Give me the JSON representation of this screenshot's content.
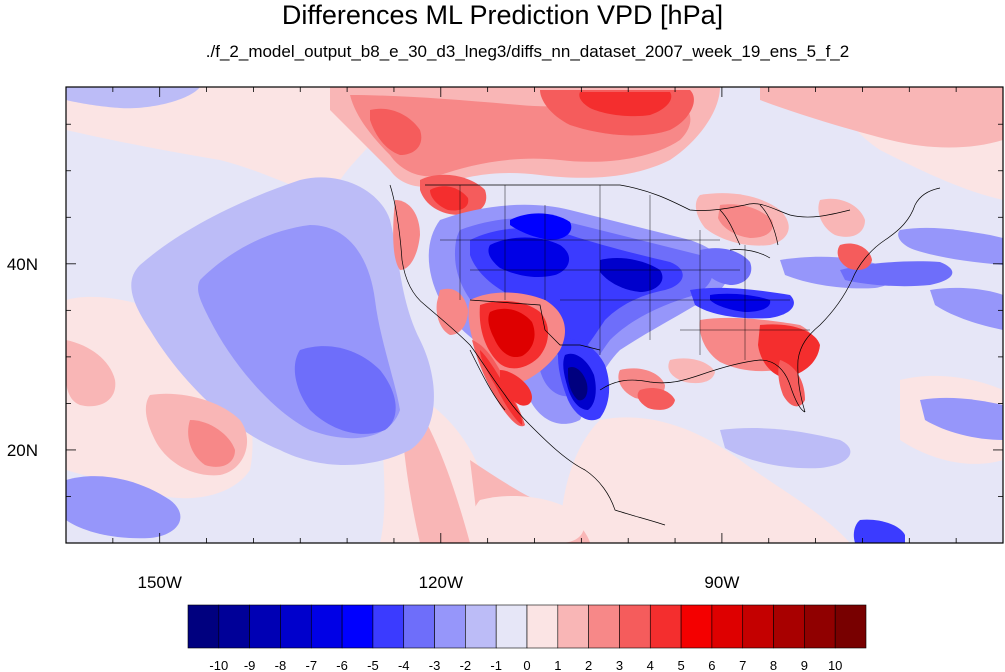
{
  "title": "Differences ML Prediction VPD [hPa]",
  "subtitle": "./f_2_model_output_b8_e_30_d3_lneg3/diffs_nn_dataset_2007_week_19_ens_5_f_2",
  "map": {
    "lon_range": [
      -160,
      -60
    ],
    "lat_range": [
      10,
      59
    ],
    "lon_ticks": [
      {
        "lon": -150,
        "label": "150W"
      },
      {
        "lon": -120,
        "label": "120W"
      },
      {
        "lon": -90,
        "label": "90W"
      }
    ],
    "lat_ticks": [
      {
        "lat": 40,
        "label": "40N"
      },
      {
        "lat": 20,
        "label": "20N"
      }
    ]
  },
  "colorbar": {
    "labels": [
      "-10",
      "-9",
      "-8",
      "-7",
      "-6",
      "-5",
      "-4",
      "-3",
      "-2",
      "-1",
      "0",
      "1",
      "2",
      "3",
      "4",
      "5",
      "6",
      "7",
      "8",
      "9",
      "10"
    ],
    "colors": [
      "#00007f",
      "#000098",
      "#0000b4",
      "#0000cc",
      "#0000e6",
      "#0000ff",
      "#3b3bff",
      "#6e6efa",
      "#9696fa",
      "#bcbcf7",
      "#e6e6f7",
      "#fbe4e4",
      "#f9b6b6",
      "#f78888",
      "#f55c5c",
      "#f42e2e",
      "#f40000",
      "#de0000",
      "#c40000",
      "#a80000",
      "#900000",
      "#780000"
    ]
  }
}
